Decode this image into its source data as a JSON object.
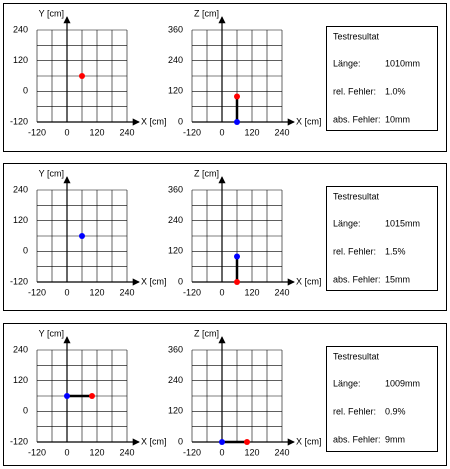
{
  "chart_data": [
    {
      "type": "scatter",
      "xlabel": "X [cm]",
      "ylabel": "Y [cm]",
      "xlim": [
        -120,
        240
      ],
      "ylim": [
        -120,
        240
      ],
      "xticks": [
        -120,
        0,
        120,
        240
      ],
      "yticks": [
        -120,
        0,
        120,
        240
      ],
      "xgrid": [
        -120,
        -60,
        0,
        60,
        120,
        180,
        240
      ],
      "ygrid": [
        -120,
        -60,
        0,
        60,
        120,
        180,
        240
      ],
      "points": [
        {
          "x": 60,
          "y": 60,
          "color": "#ff0000"
        }
      ]
    },
    {
      "type": "scatter",
      "xlabel": "X [cm]",
      "ylabel": "Z [cm]",
      "xlim": [
        -120,
        240
      ],
      "ylim": [
        0,
        360
      ],
      "xticks": [
        -120,
        0,
        120,
        240
      ],
      "yticks": [
        0,
        120,
        240,
        360
      ],
      "xgrid": [
        -120,
        -60,
        0,
        60,
        120,
        180,
        240
      ],
      "ygrid": [
        0,
        60,
        120,
        180,
        240,
        300,
        360
      ],
      "points": [
        {
          "x": 60,
          "y": 0,
          "color": "#0000ff"
        },
        {
          "x": 60,
          "y": 100,
          "color": "#ff0000"
        }
      ]
    },
    {
      "type": "scatter",
      "xlabel": "X [cm]",
      "ylabel": "Y [cm]",
      "xlim": [
        -120,
        240
      ],
      "ylim": [
        -120,
        240
      ],
      "xticks": [
        -120,
        0,
        120,
        240
      ],
      "yticks": [
        -120,
        0,
        120,
        240
      ],
      "xgrid": [
        -120,
        -60,
        0,
        60,
        120,
        180,
        240
      ],
      "ygrid": [
        -120,
        -60,
        0,
        60,
        120,
        180,
        240
      ],
      "points": [
        {
          "x": 60,
          "y": 60,
          "color": "#0000ff"
        }
      ]
    },
    {
      "type": "scatter",
      "xlabel": "X [cm]",
      "ylabel": "Z [cm]",
      "xlim": [
        -120,
        240
      ],
      "ylim": [
        0,
        360
      ],
      "xticks": [
        -120,
        0,
        120,
        240
      ],
      "yticks": [
        0,
        120,
        240,
        360
      ],
      "xgrid": [
        -120,
        -60,
        0,
        60,
        120,
        180,
        240
      ],
      "ygrid": [
        0,
        60,
        120,
        180,
        240,
        300,
        360
      ],
      "points": [
        {
          "x": 60,
          "y": 0,
          "color": "#ff0000"
        },
        {
          "x": 60,
          "y": 100,
          "color": "#0000ff"
        }
      ]
    },
    {
      "type": "scatter",
      "xlabel": "X [cm]",
      "ylabel": "Y [cm]",
      "xlim": [
        -120,
        240
      ],
      "ylim": [
        -120,
        240
      ],
      "xticks": [
        -120,
        0,
        120,
        240
      ],
      "yticks": [
        -120,
        0,
        120,
        240
      ],
      "xgrid": [
        -120,
        -60,
        0,
        60,
        120,
        180,
        240
      ],
      "ygrid": [
        -120,
        -60,
        0,
        60,
        120,
        180,
        240
      ],
      "points": [
        {
          "x": 0,
          "y": 60,
          "color": "#0000ff"
        },
        {
          "x": 100,
          "y": 60,
          "color": "#ff0000"
        }
      ]
    },
    {
      "type": "scatter",
      "xlabel": "X [cm]",
      "ylabel": "Z [cm]",
      "xlim": [
        -120,
        240
      ],
      "ylim": [
        0,
        360
      ],
      "xticks": [
        -120,
        0,
        120,
        240
      ],
      "yticks": [
        0,
        120,
        240,
        360
      ],
      "xgrid": [
        -120,
        -60,
        0,
        60,
        120,
        180,
        240
      ],
      "ygrid": [
        0,
        60,
        120,
        180,
        240,
        300,
        360
      ],
      "points": [
        {
          "x": 0,
          "y": 0,
          "color": "#0000ff"
        },
        {
          "x": 100,
          "y": 0,
          "color": "#ff0000"
        }
      ]
    }
  ],
  "results": [
    {
      "title": "Testresultat",
      "rows": [
        [
          "Länge:",
          "1010mm"
        ],
        [
          "rel. Fehler:",
          "1.0%"
        ],
        [
          "abs. Fehler:",
          "10mm"
        ]
      ]
    },
    {
      "title": "Testresultat",
      "rows": [
        [
          "Länge:",
          "1015mm"
        ],
        [
          "rel. Fehler:",
          "1.5%"
        ],
        [
          "abs. Fehler:",
          "15mm"
        ]
      ]
    },
    {
      "title": "Testresultat",
      "rows": [
        [
          "Länge:",
          "1009mm"
        ],
        [
          "rel. Fehler:",
          "0.9%"
        ],
        [
          "abs. Fehler:",
          "9mm"
        ]
      ]
    }
  ]
}
